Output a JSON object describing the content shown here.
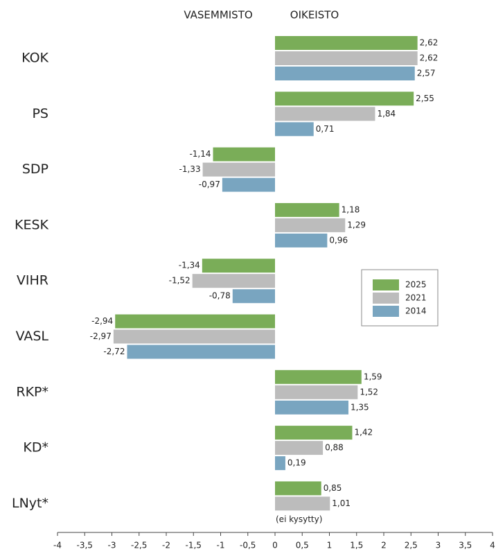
{
  "chart_data": {
    "type": "hbar",
    "header_left": "VASEMMISTO",
    "header_right": "OIKEISTO",
    "categories": [
      "KOK",
      "PS",
      "SDP",
      "KESK",
      "VIHR",
      "VASL",
      "RKP*",
      "KD*",
      "LNyt*"
    ],
    "series": [
      {
        "name": "2025",
        "color": "#7aad58",
        "values": [
          2.62,
          2.55,
          -1.14,
          1.18,
          -1.34,
          -2.94,
          1.59,
          1.42,
          0.85
        ],
        "value_labels": [
          "2,62",
          "2,55",
          "-1,14",
          "1,18",
          "-1,34",
          "-2,94",
          "1,59",
          "1,42",
          "0,85"
        ]
      },
      {
        "name": "2021",
        "color": "#bcbcbc",
        "values": [
          2.62,
          1.84,
          -1.33,
          1.29,
          -1.52,
          -2.97,
          1.52,
          0.88,
          1.01
        ],
        "value_labels": [
          "2,62",
          "1,84",
          "-1,33",
          "1,29",
          "-1,52",
          "-2,97",
          "1,52",
          "0,88",
          "1,01"
        ]
      },
      {
        "name": "2014",
        "color": "#79a5c0",
        "values": [
          2.57,
          0.71,
          -0.97,
          0.96,
          -0.78,
          -2.72,
          1.35,
          0.19,
          null
        ],
        "value_labels": [
          "2,57",
          "0,71",
          "-0,97",
          "0,96",
          "-0,78",
          "-2,72",
          "1,35",
          "0,19",
          null
        ]
      }
    ],
    "annotation": "(ei kysytty)",
    "xlim": [
      -4,
      4
    ],
    "xticks": [
      -4,
      {
        "value": -3.5,
        "label": "-3,5"
      },
      -3,
      {
        "value": -2.5,
        "label": "-2,5"
      },
      -2,
      {
        "value": -1.5,
        "label": "-1,5"
      },
      -1,
      {
        "value": -0.5,
        "label": "-0,5"
      },
      0,
      {
        "value": 0.5,
        "label": "0,5"
      },
      1,
      {
        "value": 1.5,
        "label": "1,5"
      },
      2,
      {
        "value": 2.5,
        "label": "2,5"
      },
      3,
      {
        "value": 3.5,
        "label": "3,5"
      },
      4
    ],
    "legend": "right"
  }
}
